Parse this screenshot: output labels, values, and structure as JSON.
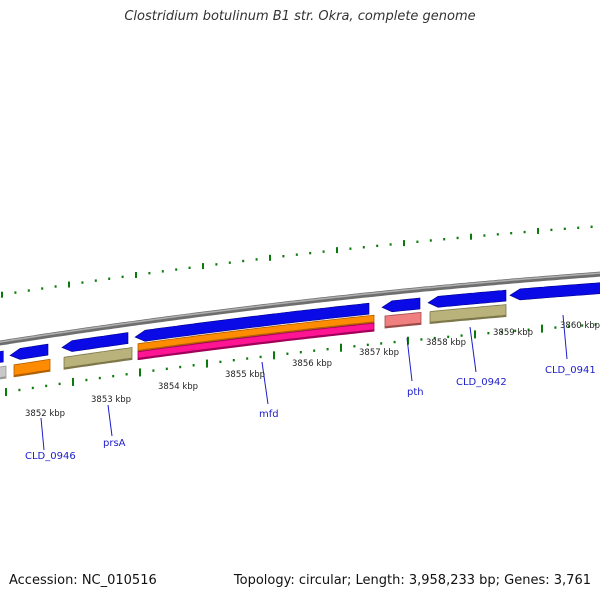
{
  "title": "Clostridium botulinum B1 str. Okra, complete genome",
  "footer": {
    "accession": "Accession: NC_010516",
    "summary": "Topology: circular; Length: 3,958,233 bp; Genes: 3,761"
  },
  "colors": {
    "backbone": "#8a8a8a",
    "cds": "#0a0ae6",
    "orange": "#ff8c00",
    "olive": "#b9b27a",
    "pink": "#ff1493",
    "salmon": "#f08080",
    "grey": "#c8c8c8",
    "tick_green": "#0a7a0a",
    "label_blue": "#1c1ccc",
    "tick_label": "#222222"
  },
  "scale_labels": [
    "3852 kbp",
    "3853 kbp",
    "3854 kbp",
    "3855 kbp",
    "3856 kbp",
    "3857 kbp",
    "3858 kbp",
    "3859 kbp",
    "3860 kbp"
  ],
  "genes": [
    {
      "name": "CLD_0946"
    },
    {
      "name": "prsA"
    },
    {
      "name": "mfd"
    },
    {
      "name": "pth"
    },
    {
      "name": "CLD_0942"
    },
    {
      "name": "CLD_0941"
    }
  ]
}
